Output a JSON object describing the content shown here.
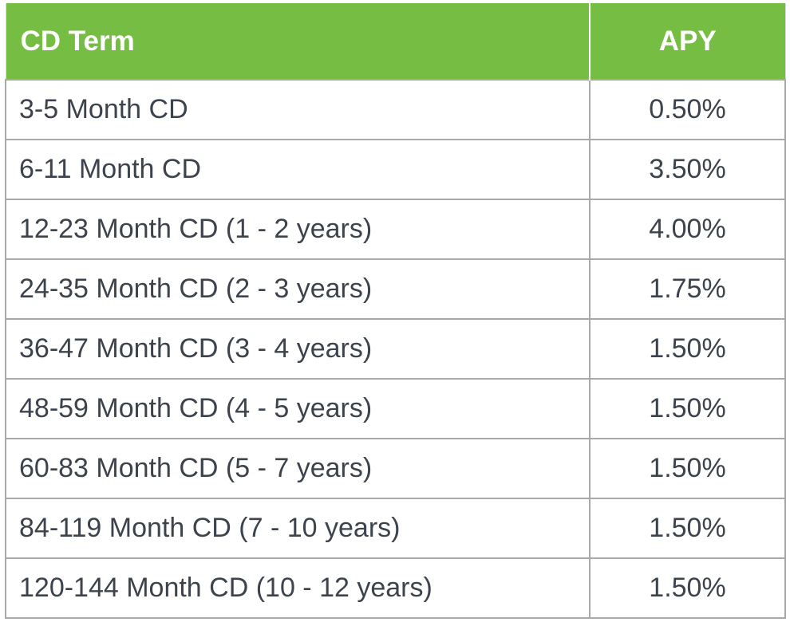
{
  "table": {
    "headers": {
      "term": "CD Term",
      "apy": "APY"
    },
    "rows": [
      {
        "term": "3-5 Month CD",
        "apy": "0.50%"
      },
      {
        "term": "6-11 Month CD",
        "apy": "3.50%"
      },
      {
        "term": "12-23 Month CD (1 - 2 years)",
        "apy": "4.00%"
      },
      {
        "term": "24-35 Month CD (2 - 3 years)",
        "apy": "1.75%"
      },
      {
        "term": "36-47 Month CD (3 - 4 years)",
        "apy": "1.50%"
      },
      {
        "term": "48-59 Month CD (4 - 5 years)",
        "apy": "1.50%"
      },
      {
        "term": "60-83 Month CD (5 - 7 years)",
        "apy": "1.50%"
      },
      {
        "term": "84-119 Month CD (7 - 10 years)",
        "apy": "1.50%"
      },
      {
        "term": "120-144 Month CD (10 - 12 years)",
        "apy": "1.50%"
      }
    ]
  },
  "colors": {
    "header_background": "#76bd43",
    "header_text": "#ffffff",
    "body_text": "#3d434d",
    "grid_line": "#a9a9a9"
  }
}
